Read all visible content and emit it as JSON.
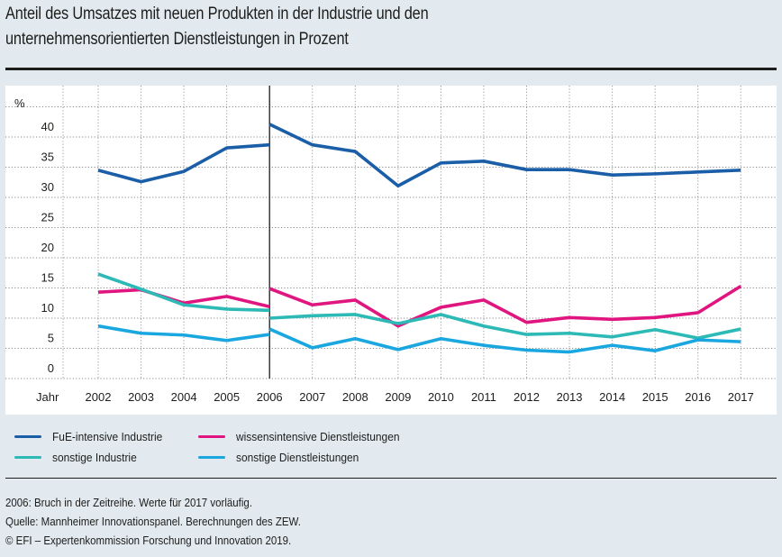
{
  "header": {
    "title_line1": "Anteil des Umsatzes mit neuen Produkten in der Industrie und den",
    "title_line2": "unternehmensorientierten Dienstleistungen in Prozent"
  },
  "chart_data": {
    "type": "line",
    "title": "Anteil des Umsatzes mit neuen Produkten in der Industrie und den unternehmensorientierten Dienstleistungen in Prozent",
    "xlabel": "Jahr",
    "ylabel": "%",
    "ylim": [
      0,
      45
    ],
    "yticks": [
      0,
      5,
      10,
      15,
      20,
      25,
      30,
      35,
      40
    ],
    "grid": true,
    "legend_position": "bottom",
    "categories": [
      "2002",
      "2003",
      "2004",
      "2005",
      "2006",
      "2007",
      "2008",
      "2009",
      "2010",
      "2011",
      "2012",
      "2013",
      "2014",
      "2015",
      "2016",
      "2017"
    ],
    "break_year": "2006",
    "break_note": "Series break in 2006: each series has an old-method value and a new-method value for 2006",
    "series": [
      {
        "name": "FuE-intensive Industrie",
        "color": "#1b5ea8",
        "before_break": [
          34.5,
          32.6,
          34.3,
          38.2,
          38.7
        ],
        "after_break": [
          42.1,
          38.7,
          37.6,
          31.9,
          35.7,
          36.0,
          34.6,
          34.6,
          33.7,
          33.9,
          34.2,
          34.5
        ]
      },
      {
        "name": "wissensintensive Dienstleistungen",
        "color": "#e0157f",
        "before_break": [
          14.3,
          14.7,
          12.5,
          13.6,
          11.9
        ],
        "after_break": [
          14.9,
          12.2,
          13.0,
          8.7,
          11.8,
          13.0,
          9.3,
          10.1,
          9.8,
          10.1,
          10.9,
          15.3
        ]
      },
      {
        "name": "sonstige Industrie",
        "color": "#2db9b5",
        "before_break": [
          17.3,
          14.8,
          12.2,
          11.5,
          11.3
        ],
        "after_break": [
          10.0,
          10.4,
          10.6,
          9.1,
          10.6,
          8.7,
          7.3,
          7.5,
          6.9,
          8.1,
          6.7,
          8.2
        ]
      },
      {
        "name": "sonstige Dienstleistungen",
        "color": "#1aa7e0",
        "before_break": [
          8.7,
          7.5,
          7.2,
          6.3,
          7.3
        ],
        "after_break": [
          8.2,
          5.1,
          6.6,
          4.8,
          6.6,
          5.5,
          4.7,
          4.4,
          5.5,
          4.6,
          6.4,
          6.1
        ]
      }
    ]
  },
  "legend": {
    "items": [
      {
        "label": "FuE-intensive Industrie",
        "color": "#1b5ea8"
      },
      {
        "label": "wissensintensive Dienstleistungen",
        "color": "#e0157f"
      },
      {
        "label": "sonstige Industrie",
        "color": "#2db9b5"
      },
      {
        "label": "sonstige Dienstleistungen",
        "color": "#1aa7e0"
      }
    ]
  },
  "notes": {
    "line1": "2006: Bruch in der Zeitreihe. Werte für 2017 vorläufig.",
    "line2": "Quelle: Mannheimer Innovationspanel. Berechnungen des ZEW.",
    "line3": "© EFI – Expertenkommission Forschung und Innovation 2019."
  }
}
